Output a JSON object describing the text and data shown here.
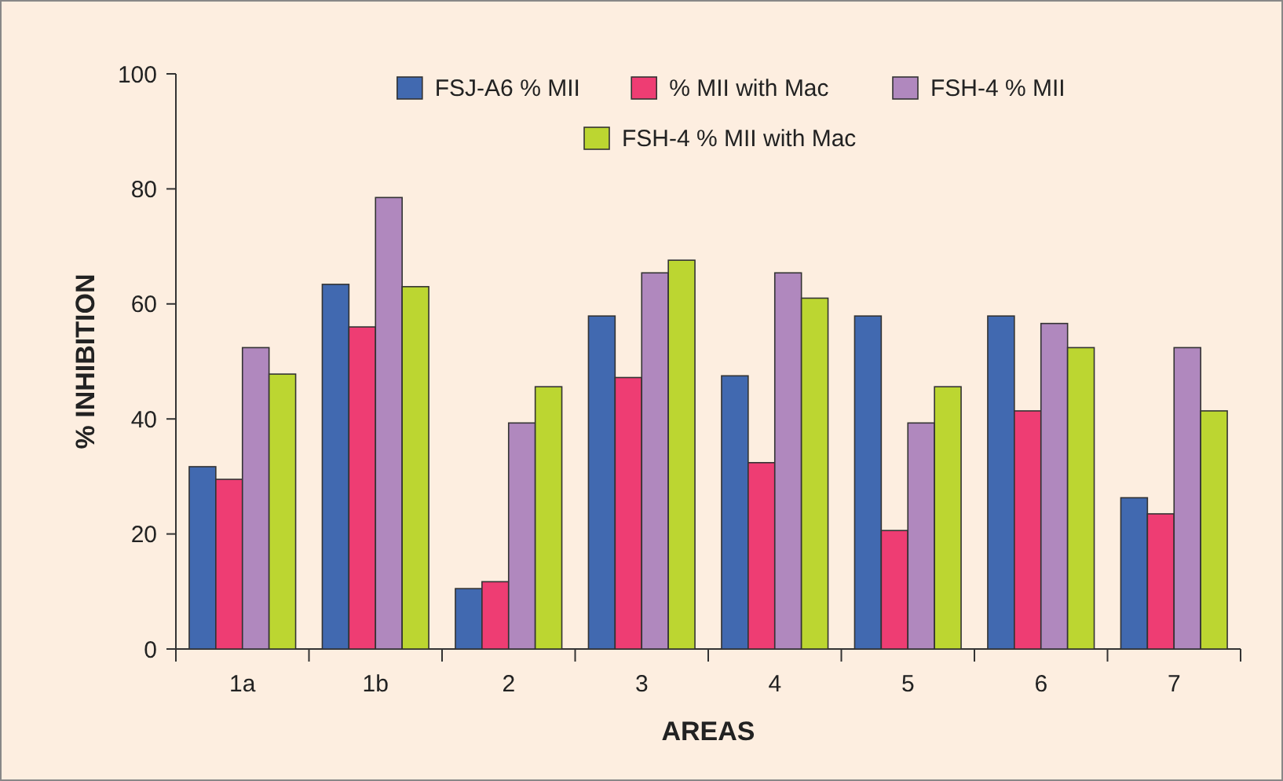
{
  "chart_data": {
    "type": "bar",
    "xlabel": "AREAS",
    "ylabel": "% INHIBITION",
    "categories": [
      "1a",
      "1b",
      "2",
      "3",
      "4",
      "5",
      "6",
      "7"
    ],
    "series": [
      {
        "name": "FSJ-A6 % MII",
        "color": "#4169b0",
        "values": [
          31.7,
          63.4,
          10.5,
          57.9,
          47.5,
          57.9,
          57.9,
          26.3
        ]
      },
      {
        "name": "% MII with Mac",
        "color": "#ee3d73",
        "values": [
          29.5,
          56,
          11.7,
          47.2,
          32.4,
          20.6,
          41.4,
          23.5
        ]
      },
      {
        "name": "FSH-4 % MII",
        "color": "#b088be",
        "values": [
          52.4,
          78.5,
          39.3,
          65.4,
          65.4,
          39.3,
          56.6,
          52.4
        ]
      },
      {
        "name": "FSH-4 % MII with Mac",
        "color": "#bcd631",
        "values": [
          47.8,
          63,
          45.6,
          67.6,
          61,
          45.6,
          52.4,
          41.4
        ]
      }
    ],
    "ylim": [
      0,
      100
    ],
    "yticks": [
      0,
      20,
      40,
      60,
      80,
      100
    ],
    "grid": false,
    "legend": "top"
  }
}
